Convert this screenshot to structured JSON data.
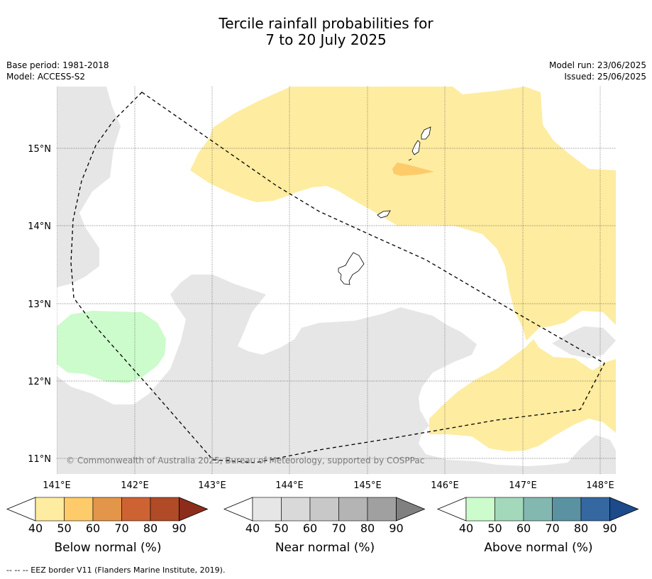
{
  "title_line1": "Tercile rainfall probabilities for",
  "title_line2": "7 to 20 July 2025",
  "meta_left": [
    "Base period: 1981-2018",
    "Model: ACCESS-S2"
  ],
  "meta_right": [
    "Model run: 23/06/2025",
    "Issued: 25/06/2025"
  ],
  "map": {
    "lon_ticks": [
      "141°E",
      "142°E",
      "143°E",
      "144°E",
      "145°E",
      "146°E",
      "147°E",
      "148°E"
    ],
    "lat_ticks": [
      "15°N",
      "14°N",
      "13°N",
      "12°N",
      "11°N"
    ],
    "copyright": "© Commonwealth of Australia 2025, Bureau of Meteorology, supported by COSPPac",
    "gridlines": true
  },
  "colorbars": [
    {
      "label": "Below normal (%)",
      "ticks": [
        "40",
        "50",
        "60",
        "70",
        "80",
        "90"
      ],
      "colors": [
        "#ffffff",
        "#feeca0",
        "#fdcb6a",
        "#e3954a",
        "#cd6333",
        "#b04a27",
        "#8c2d1b"
      ]
    },
    {
      "label": "Near normal (%)",
      "ticks": [
        "40",
        "50",
        "60",
        "70",
        "80",
        "90"
      ],
      "colors": [
        "#ffffff",
        "#e6e6e6",
        "#d9d9d9",
        "#c8c8c8",
        "#b4b4b4",
        "#a0a0a0",
        "#808080"
      ]
    },
    {
      "label": "Above normal (%)",
      "ticks": [
        "40",
        "50",
        "60",
        "70",
        "80",
        "90"
      ],
      "colors": [
        "#ffffff",
        "#ccfbcc",
        "#a4d8bb",
        "#83b8b0",
        "#5a92a2",
        "#3567a0",
        "#1d4a8a"
      ]
    }
  ],
  "footnote": "--  --  -- EEZ border V11 (Flanders Marine Institute, 2019).",
  "category_colors": {
    "below_light": "#feeca0",
    "below_medium": "#fdcb6a",
    "near_light": "#e6e6e6",
    "above_light": "#ccfbcc"
  }
}
